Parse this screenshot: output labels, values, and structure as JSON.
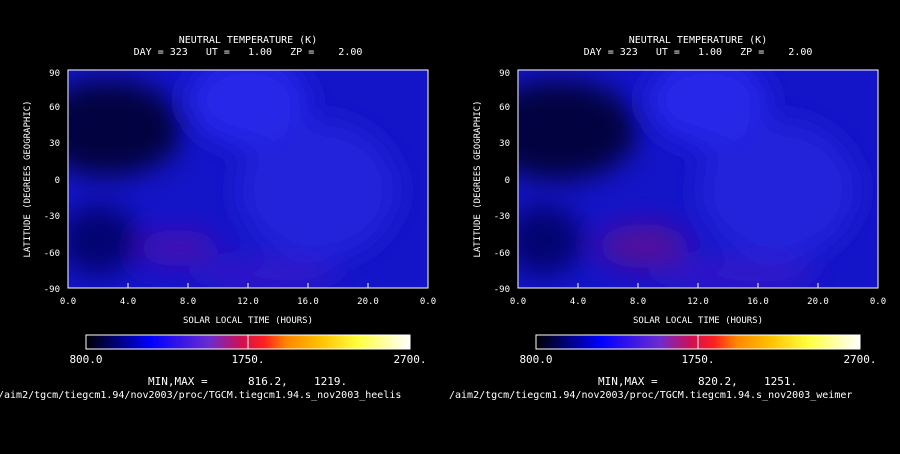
{
  "chart_data": [
    {
      "type": "heatmap",
      "title": "NEUTRAL TEMPERATURE (K)",
      "subtitle": "DAY = 323   UT =   1.00   ZP =    2.00",
      "xlabel": "SOLAR LOCAL TIME (HOURS)",
      "ylabel": "LATITUDE (DEGREES GEOGRAPHIC)",
      "x_tick_labels": [
        "0.0",
        "4.0",
        "8.0",
        "12.0",
        "16.0",
        "20.0",
        "0.0"
      ],
      "y_tick_labels": [
        "90",
        "60",
        "30",
        "0",
        "-30",
        "-60",
        "-90"
      ],
      "xlim": [
        0,
        24
      ],
      "ylim": [
        -90,
        90
      ],
      "colorbar": {
        "min_label": "800.0",
        "mid_label": "1750.",
        "max_label": "2700.",
        "range": [
          800,
          2700
        ]
      },
      "minmax_label": "MIN,MAX =",
      "min_value": "816.2,",
      "max_value": "1219.",
      "features": [
        {
          "slt": 3,
          "lat": 50,
          "value": 830
        },
        {
          "slt": 8,
          "lat": -58,
          "value": 1150
        },
        {
          "slt": 14,
          "lat": 60,
          "value": 1080
        },
        {
          "slt": 13,
          "lat": -80,
          "value": 1120
        }
      ],
      "source_path": "/aim2/tgcm/tiegcm1.94/nov2003/proc/TGCM.tiegcm1.94.s_nov2003_heelis"
    },
    {
      "type": "heatmap",
      "title": "NEUTRAL TEMPERATURE (K)",
      "subtitle": "DAY = 323   UT =   1.00   ZP =    2.00",
      "xlabel": "SOLAR LOCAL TIME (HOURS)",
      "ylabel": "LATITUDE (DEGREES GEOGRAPHIC)",
      "x_tick_labels": [
        "0.0",
        "4.0",
        "8.0",
        "12.0",
        "16.0",
        "20.0",
        "0.0"
      ],
      "y_tick_labels": [
        "90",
        "60",
        "30",
        "0",
        "-30",
        "-60",
        "-90"
      ],
      "xlim": [
        0,
        24
      ],
      "ylim": [
        -90,
        90
      ],
      "colorbar": {
        "min_label": "800.0",
        "mid_label": "1750.",
        "max_label": "2700.",
        "range": [
          800,
          2700
        ]
      },
      "minmax_label": "MIN,MAX =",
      "min_value": "820.2,",
      "max_value": "1251.",
      "features": [
        {
          "slt": 3,
          "lat": 50,
          "value": 835
        },
        {
          "slt": 8.5,
          "lat": -58,
          "value": 1200
        },
        {
          "slt": 14,
          "lat": 60,
          "value": 1080
        },
        {
          "slt": 14,
          "lat": -80,
          "value": 1130
        }
      ],
      "source_path": "/aim2/tgcm/tiegcm1.94/nov2003/proc/TGCM.tiegcm1.94.s_nov2003_weimer"
    }
  ]
}
